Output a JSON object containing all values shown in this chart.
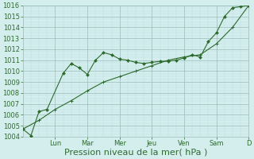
{
  "bg_color": "#d4eeee",
  "grid_major_color": "#99bbbb",
  "grid_minor_color": "#bbdddd",
  "line_color": "#2d6b2d",
  "ylim": [
    1004,
    1016
  ],
  "xlim": [
    0,
    14
  ],
  "ytick_vals": [
    1004,
    1005,
    1006,
    1007,
    1008,
    1009,
    1010,
    1011,
    1012,
    1013,
    1014,
    1015,
    1016
  ],
  "xlabel": "Pression niveau de la mer( hPa )",
  "xlabel_fontsize": 8,
  "tick_fontsize": 6,
  "xtick_positions": [
    2,
    4,
    6,
    8,
    10,
    12,
    14
  ],
  "xtick_names": [
    "Lun",
    "Mar",
    "Mer",
    "Jeu",
    "Ven",
    "Sam",
    "D"
  ],
  "series1_x": [
    0,
    0.5,
    1.0,
    1.5,
    2.5,
    3.0,
    3.5,
    4.0,
    4.5,
    5.0,
    5.5,
    6.0,
    6.5,
    7.0,
    7.5,
    8.0,
    8.5,
    9.0,
    9.5,
    10.0,
    10.5,
    11.0,
    11.5,
    12.0,
    12.5,
    13.0,
    13.5,
    14.0
  ],
  "series1_y": [
    1004.7,
    1004.1,
    1006.3,
    1006.5,
    1009.8,
    1010.7,
    1010.3,
    1009.7,
    1011.0,
    1011.7,
    1011.5,
    1011.1,
    1011.0,
    1010.8,
    1010.7,
    1010.8,
    1010.9,
    1010.9,
    1011.0,
    1011.2,
    1011.5,
    1011.3,
    1012.7,
    1013.5,
    1015.0,
    1015.8,
    1015.9,
    1016.0
  ],
  "series2_x": [
    0,
    1.0,
    2.0,
    3.0,
    4.0,
    5.0,
    6.0,
    7.0,
    8.0,
    9.0,
    10.0,
    11.0,
    12.0,
    13.0,
    14.0
  ],
  "series2_y": [
    1004.7,
    1005.5,
    1006.5,
    1007.3,
    1008.2,
    1009.0,
    1009.5,
    1010.0,
    1010.5,
    1011.0,
    1011.3,
    1011.5,
    1012.5,
    1014.0,
    1016.0
  ]
}
